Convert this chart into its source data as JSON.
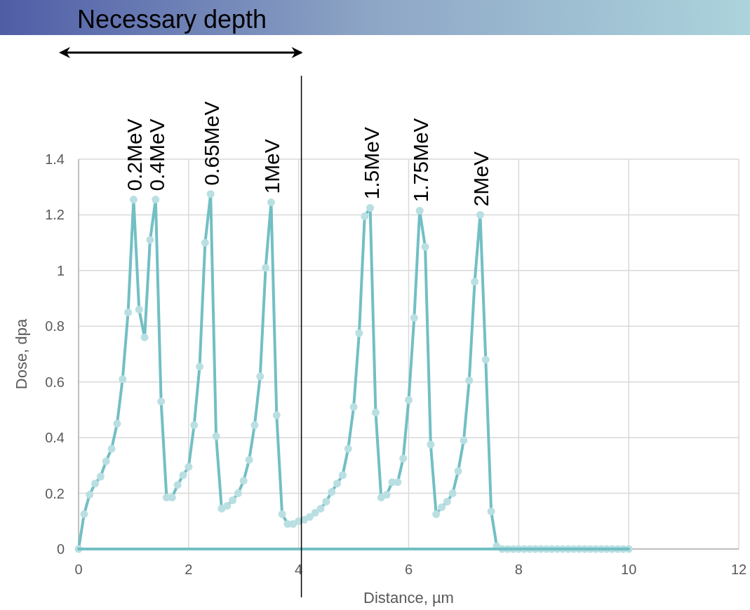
{
  "chart_data": {
    "type": "line",
    "title": "Necessary depth",
    "xlabel": "Distance, µm",
    "ylabel": "Dose, dpa",
    "xlim": [
      0,
      12
    ],
    "ylim": [
      0,
      1.4
    ],
    "xticks": [
      0,
      2,
      4,
      6,
      8,
      10,
      12
    ],
    "yticks": [
      0,
      0.2,
      0.4,
      0.6,
      0.8,
      1,
      1.2,
      1.4
    ],
    "grid": true,
    "marker": "circle",
    "line_style": "solid",
    "series": [
      {
        "color": "#72bfc4",
        "x": [
          0,
          0.1,
          0.2,
          0.3,
          0.4,
          0.5,
          0.6,
          0.7,
          0.8,
          0.9,
          1.0,
          1.1,
          1.2,
          1.3,
          1.4,
          1.5,
          1.6,
          1.7,
          1.8,
          1.9,
          2.0,
          2.1,
          2.2,
          2.3,
          2.4,
          2.5,
          2.6,
          2.7,
          2.8,
          2.9,
          3.0,
          3.1,
          3.2,
          3.3,
          3.4,
          3.5,
          3.6,
          3.7,
          3.8,
          3.9,
          4.0,
          4.1,
          4.2,
          4.3,
          4.4,
          4.5,
          4.6,
          4.7,
          4.8,
          4.9,
          5.0,
          5.1,
          5.2,
          5.3,
          5.4,
          5.5,
          5.6,
          5.7,
          5.8,
          5.9,
          6.0,
          6.1,
          6.2,
          6.3,
          6.4,
          6.5,
          6.6,
          6.7,
          6.8,
          6.9,
          7.0,
          7.1,
          7.2,
          7.3,
          7.4,
          7.5,
          7.6,
          7.7,
          7.8,
          7.9,
          8.0,
          8.1,
          8.2,
          8.3,
          8.4,
          8.5,
          8.6,
          8.7,
          8.8,
          8.9,
          9.0,
          9.1,
          9.2,
          9.3,
          9.4,
          9.5,
          9.6,
          9.7,
          9.8,
          9.9,
          10.0
        ],
        "values": [
          0,
          0.125,
          0.195,
          0.235,
          0.26,
          0.315,
          0.36,
          0.45,
          0.61,
          0.85,
          1.255,
          0.86,
          0.76,
          1.11,
          1.255,
          0.53,
          0.185,
          0.185,
          0.23,
          0.265,
          0.295,
          0.445,
          0.655,
          1.1,
          1.275,
          0.405,
          0.145,
          0.155,
          0.175,
          0.2,
          0.245,
          0.32,
          0.445,
          0.62,
          1.01,
          1.245,
          0.48,
          0.125,
          0.09,
          0.09,
          0.1,
          0.105,
          0.115,
          0.13,
          0.145,
          0.17,
          0.205,
          0.235,
          0.265,
          0.36,
          0.51,
          0.775,
          1.195,
          1.225,
          0.49,
          0.185,
          0.195,
          0.24,
          0.24,
          0.325,
          0.535,
          0.83,
          1.215,
          1.085,
          0.375,
          0.125,
          0.15,
          0.17,
          0.2,
          0.28,
          0.39,
          0.605,
          0.96,
          1.2,
          0.68,
          0.135,
          0.01,
          0,
          0,
          0,
          0,
          0,
          0,
          0,
          0,
          0,
          0,
          0,
          0,
          0,
          0,
          0,
          0,
          0,
          0,
          0,
          0,
          0,
          0,
          0,
          0
        ]
      },
      {
        "type": "line",
        "color": "#72bfc4",
        "marker": "none",
        "x": [
          0,
          10
        ],
        "values": [
          0,
          0
        ]
      }
    ],
    "annotations": [
      {
        "text": "0.2MeV",
        "x": 1.0,
        "y": 1.255
      },
      {
        "text": "0.4MeV",
        "x": 1.4,
        "y": 1.255
      },
      {
        "text": "0.65MeV",
        "x": 2.4,
        "y": 1.275
      },
      {
        "text": "1MeV",
        "x": 3.5,
        "y": 1.245
      },
      {
        "text": "1.5MeV",
        "x": 5.3,
        "y": 1.225
      },
      {
        "text": "1.75MeV",
        "x": 6.2,
        "y": 1.215
      },
      {
        "text": "2MeV",
        "x": 7.3,
        "y": 1.2
      }
    ],
    "ref_lines": [
      {
        "axis": "x",
        "value": 4.05,
        "color": "#000000",
        "line_style": "solid"
      }
    ]
  }
}
